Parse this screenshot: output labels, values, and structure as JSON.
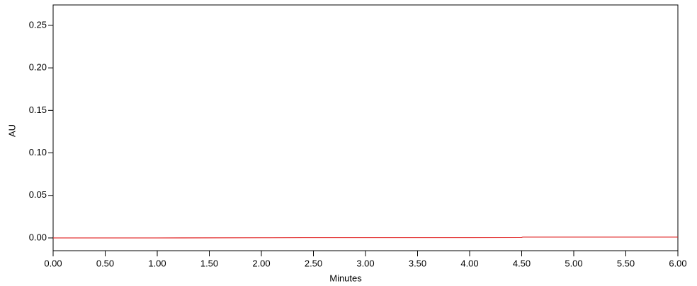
{
  "chart_data": {
    "type": "line",
    "x_label": "Minutes",
    "y_label": "AU",
    "x": [
      0,
      1,
      2,
      2.4,
      3,
      4,
      4.5,
      4.51,
      5,
      6
    ],
    "series": [
      {
        "name": "AU",
        "color": "#e02020",
        "values": [
          0.0,
          0.0,
          0.0002,
          0.0003,
          0.0003,
          0.0003,
          0.0004,
          0.001,
          0.001,
          0.001
        ]
      }
    ],
    "xlim": [
      0,
      6
    ],
    "ylim": [
      -0.015,
      0.274
    ],
    "xticks": [
      {
        "value": 0,
        "label": "0.00"
      },
      {
        "value": 0.5,
        "label": "0.50"
      },
      {
        "value": 1,
        "label": "1.00"
      },
      {
        "value": 1.5,
        "label": "1.50"
      },
      {
        "value": 2,
        "label": "2.00"
      },
      {
        "value": 2.5,
        "label": "2.50"
      },
      {
        "value": 3,
        "label": "3.00"
      },
      {
        "value": 3.5,
        "label": "3.50"
      },
      {
        "value": 4,
        "label": "4.00"
      },
      {
        "value": 4.5,
        "label": "4.50"
      },
      {
        "value": 5,
        "label": "5.00"
      },
      {
        "value": 5.5,
        "label": "5.50"
      },
      {
        "value": 6,
        "label": "6.00"
      }
    ],
    "yticks": [
      {
        "value": 0,
        "label": "0.00"
      },
      {
        "value": 0.05,
        "label": "0.05"
      },
      {
        "value": 0.1,
        "label": "0.10"
      },
      {
        "value": 0.15,
        "label": "0.15"
      },
      {
        "value": 0.2,
        "label": "0.20"
      },
      {
        "value": 0.25,
        "label": "0.25"
      }
    ]
  }
}
